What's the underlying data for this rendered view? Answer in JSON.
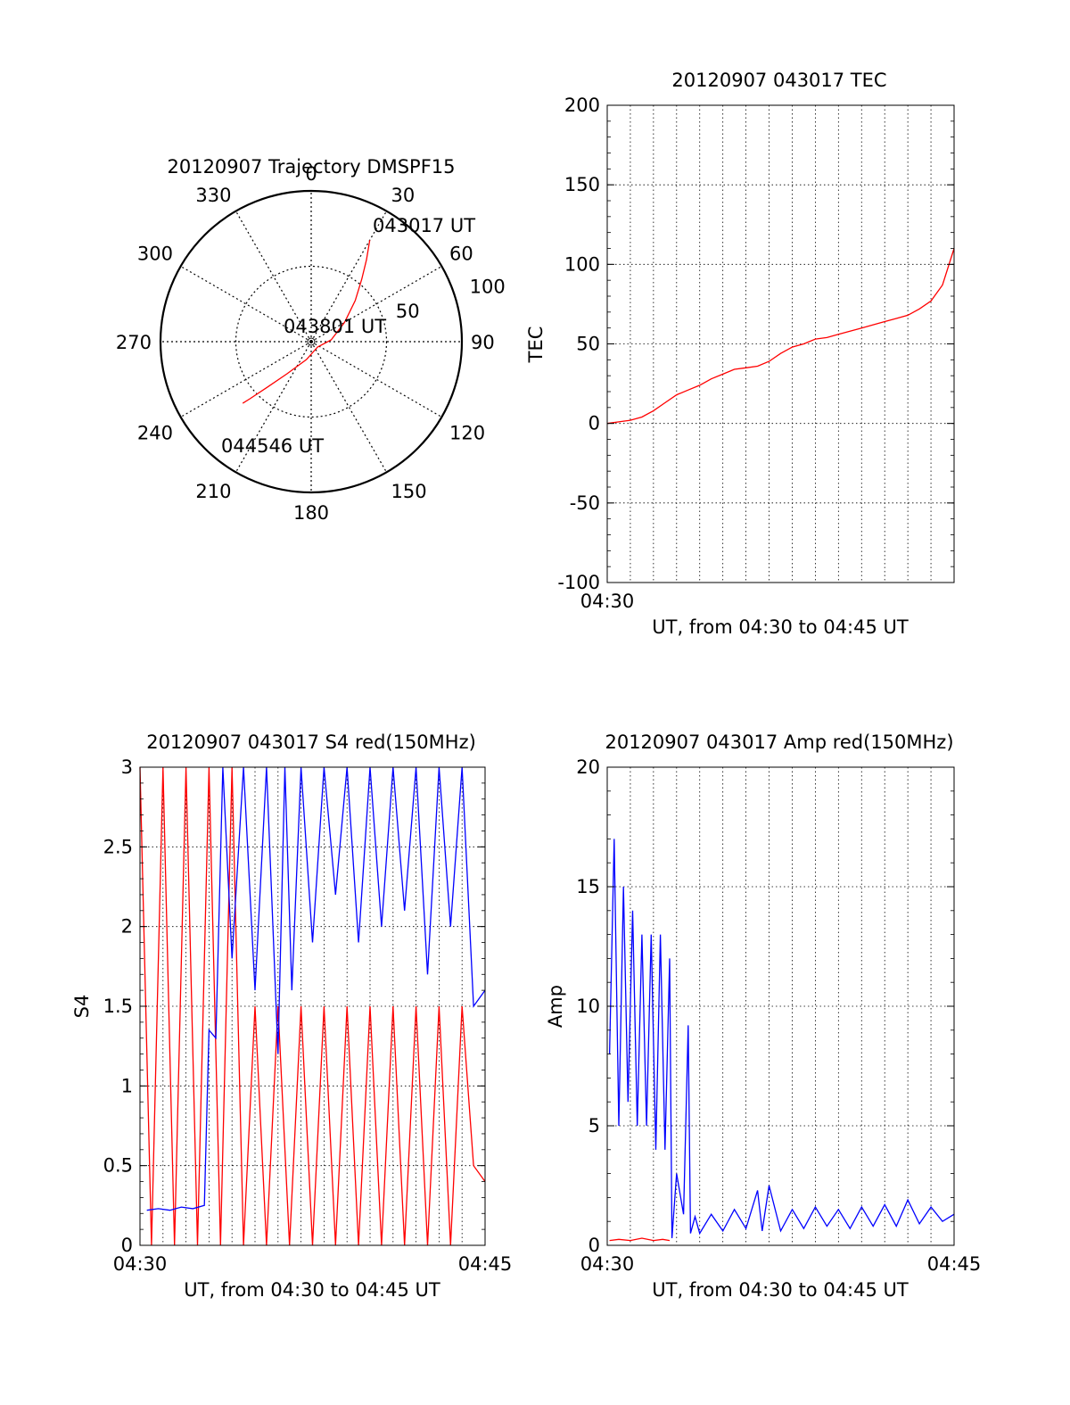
{
  "figure": {
    "background": "#ffffff"
  },
  "chart_data": [
    {
      "id": "trajectory",
      "type": "scatter",
      "subtype": "polar",
      "title": "20120907 Trajectory DMSPF15",
      "angle_ticks": [
        "0",
        "30",
        "60",
        "90",
        "120",
        "150",
        "180",
        "210",
        "240",
        "270",
        "300",
        "330"
      ],
      "radius_labels": [
        "50",
        "100"
      ],
      "rlim": [
        0,
        100
      ],
      "theta_zero": "top",
      "theta_direction": "clockwise",
      "grid": true,
      "annotations": [
        "043017 UT",
        "043801 UT",
        "044546 UT"
      ],
      "series": [
        {
          "color": "#ff0000",
          "points": [
            {
              "az": 30,
              "el": 20
            },
            {
              "az": 34,
              "el": 31
            },
            {
              "az": 39,
              "el": 42
            },
            {
              "az": 47,
              "el": 54
            },
            {
              "az": 60,
              "el": 67
            },
            {
              "az": 85,
              "el": 78
            },
            {
              "az": 130,
              "el": 85
            },
            {
              "az": 195,
              "el": 79
            },
            {
              "az": 217,
              "el": 66
            },
            {
              "az": 224,
              "el": 52
            },
            {
              "az": 227,
              "el": 40
            },
            {
              "az": 228,
              "el": 35
            }
          ]
        }
      ]
    },
    {
      "id": "tec",
      "type": "line",
      "title": "20120907 043017 TEC",
      "xlabel": "UT, from 04:30 to 04:45 UT",
      "ylabel": "TEC",
      "xlim": [
        0,
        15
      ],
      "ylim": [
        -100,
        200
      ],
      "x_unit": "minutes after 04:30 UT",
      "x_tick_labels": [
        "04:30"
      ],
      "y_ticks": [
        -100,
        -50,
        0,
        50,
        100,
        150,
        200
      ],
      "grid": true,
      "series": [
        {
          "color": "#ff0000",
          "x": [
            0,
            0.5,
            1,
            1.5,
            2,
            2.5,
            3,
            3.5,
            4,
            4.5,
            5,
            5.5,
            6,
            6.5,
            7,
            7.5,
            8,
            8.5,
            9,
            9.5,
            10,
            10.5,
            11,
            11.5,
            12,
            12.5,
            13,
            13.5,
            14,
            14.5,
            15
          ],
          "y": [
            0,
            1,
            2,
            4,
            8,
            13,
            18,
            21,
            24,
            28,
            31,
            34,
            35,
            36,
            39,
            44,
            48,
            50,
            53,
            54,
            56,
            58,
            60,
            62,
            64,
            66,
            68,
            72,
            77,
            87,
            110
          ]
        }
      ]
    },
    {
      "id": "s4",
      "type": "line",
      "title": "20120907 043017 S4 red(150MHz)",
      "xlabel": "UT, from 04:30 to 04:45 UT",
      "ylabel": "S4",
      "xlim": [
        0,
        15
      ],
      "ylim": [
        0,
        3
      ],
      "x_unit": "minutes after 04:30 UT",
      "x_tick_labels": [
        "04:30",
        "04:45"
      ],
      "y_ticks": [
        0,
        0.5,
        1,
        1.5,
        2,
        2.5,
        3
      ],
      "grid": true,
      "series": [
        {
          "color": "#ff0000",
          "x": [
            0,
            0.5,
            1,
            1.5,
            2,
            2.5,
            3,
            3.5,
            4,
            4.5,
            5,
            5.5,
            6,
            6.5,
            7,
            7.5,
            8,
            8.5,
            9,
            9.5,
            10,
            10.5,
            11,
            11.5,
            12,
            12.5,
            13,
            13.5,
            14,
            14.5,
            15
          ],
          "y": [
            3,
            0,
            3,
            0,
            3,
            0,
            3,
            0,
            3,
            0,
            1.5,
            0,
            1.5,
            0,
            1.5,
            0,
            1.5,
            0,
            1.5,
            0,
            1.5,
            0,
            1.5,
            0,
            1.5,
            0,
            1.5,
            0,
            1.5,
            0.5,
            0.4
          ]
        },
        {
          "color": "#0000ff",
          "x": [
            0.3,
            0.8,
            1.3,
            1.8,
            2.3,
            2.8,
            3.0,
            3.3,
            3.6,
            4.0,
            4.5,
            5.0,
            5.5,
            6.0,
            6.3,
            6.6,
            7.0,
            7.5,
            8.0,
            8.5,
            9.0,
            9.5,
            10.0,
            10.5,
            11.0,
            11.5,
            12.0,
            12.5,
            13.0,
            13.5,
            14.0,
            14.5,
            15.0
          ],
          "y": [
            0.22,
            0.23,
            0.22,
            0.24,
            0.23,
            0.25,
            1.35,
            1.3,
            3,
            1.8,
            3,
            1.6,
            3,
            1.2,
            3,
            1.6,
            3,
            1.9,
            3,
            2.2,
            3,
            1.9,
            3,
            2.0,
            3,
            2.1,
            3,
            1.7,
            3,
            2.0,
            3,
            1.5,
            1.6
          ]
        }
      ]
    },
    {
      "id": "amp",
      "type": "line",
      "title": "20120907 043017 Amp red(150MHz)",
      "xlabel": "UT, from 04:30 to 04:45 UT",
      "ylabel": "Amp",
      "xlim": [
        0,
        15
      ],
      "ylim": [
        0,
        20
      ],
      "x_unit": "minutes after 04:30 UT",
      "x_tick_labels": [
        "04:30",
        "04:45"
      ],
      "y_ticks": [
        0,
        5,
        10,
        15,
        20
      ],
      "grid": true,
      "series": [
        {
          "color": "#ff0000",
          "x": [
            0.1,
            0.5,
            1.0,
            1.5,
            2.0,
            2.4,
            2.7
          ],
          "y": [
            0.2,
            0.25,
            0.2,
            0.3,
            0.2,
            0.25,
            0.2
          ]
        },
        {
          "color": "#0000ff",
          "x": [
            0.1,
            0.3,
            0.5,
            0.7,
            0.9,
            1.1,
            1.3,
            1.5,
            1.7,
            1.9,
            2.1,
            2.3,
            2.5,
            2.7,
            2.8,
            3.0,
            3.3,
            3.5,
            3.6,
            3.8,
            4.0,
            4.5,
            5.0,
            5.5,
            6.0,
            6.5,
            6.7,
            7.0,
            7.5,
            8.0,
            8.5,
            9.0,
            9.5,
            10.0,
            10.5,
            11.0,
            11.5,
            12.0,
            12.5,
            13.0,
            13.5,
            14.0,
            14.5,
            15.0
          ],
          "y": [
            8,
            17,
            5,
            15,
            6,
            14,
            5,
            13,
            5,
            13,
            4,
            13,
            4,
            12,
            0.3,
            3,
            1.3,
            9.2,
            0.5,
            1.2,
            0.5,
            1.3,
            0.6,
            1.5,
            0.7,
            2.3,
            0.6,
            2.5,
            0.6,
            1.5,
            0.7,
            1.6,
            0.8,
            1.5,
            0.7,
            1.6,
            0.8,
            1.7,
            0.8,
            1.9,
            0.9,
            1.6,
            1.0,
            1.3
          ]
        }
      ]
    }
  ]
}
